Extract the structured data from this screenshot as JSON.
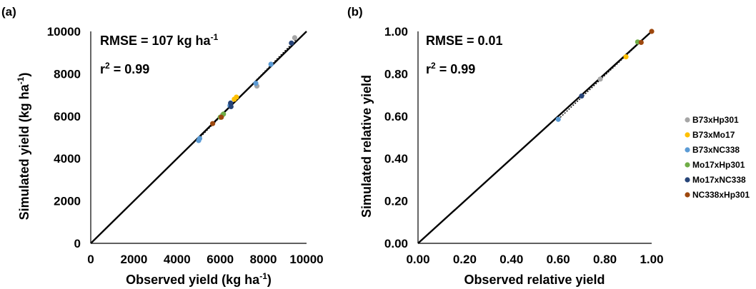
{
  "legend": {
    "placement": "right",
    "entries": [
      {
        "name": "B73xHp301",
        "color": "#a6a6a6"
      },
      {
        "name": "B73xMo17",
        "color": "#ffc000"
      },
      {
        "name": "B73xNC338",
        "color": "#5b9bd5"
      },
      {
        "name": "Mo17xHp301",
        "color": "#70ad47"
      },
      {
        "name": "Mo17xNC338",
        "color": "#264478"
      },
      {
        "name": "NC338xHp301",
        "color": "#9e480e"
      }
    ]
  },
  "chart_data": [
    {
      "type": "scatter",
      "panel_label": "(a)",
      "xlabel": "Observed yield  (kg ha",
      "xlabel_sup": "-1",
      "xlabel_tail": ")",
      "ylabel": "Simulated yield  (kg ha",
      "ylabel_sup": "-1",
      "ylabel_tail": ")",
      "xlim": [
        0,
        10000
      ],
      "ylim": [
        0,
        10000
      ],
      "xticks": [
        "0",
        "2000",
        "4000",
        "6000",
        "8000",
        "10000"
      ],
      "yticks": [
        "0",
        "2000",
        "4000",
        "6000",
        "8000",
        "10000"
      ],
      "grid": false,
      "annotations": {
        "rmse": "RMSE = 107 kg ha",
        "rmse_sup": "-1",
        "r2_prefix": "r",
        "r2_sup": "2",
        "r2_rest": " = 0.99"
      },
      "one_to_one_line": true,
      "trend_line": [
        [
          5000,
          4930
        ],
        [
          9500,
          9600
        ]
      ],
      "series": [
        {
          "name": "B73xHp301",
          "color": "#a6a6a6",
          "points": [
            [
              6100,
              6050
            ],
            [
              7700,
              7420
            ],
            [
              9450,
              9700
            ]
          ]
        },
        {
          "name": "B73xMo17",
          "color": "#ffc000",
          "points": [
            [
              6750,
              6900
            ],
            [
              6650,
              6800
            ]
          ]
        },
        {
          "name": "B73xNC338",
          "color": "#5b9bd5",
          "points": [
            [
              5000,
              4850
            ],
            [
              5050,
              4950
            ],
            [
              6450,
              6500
            ],
            [
              7650,
              7550
            ],
            [
              8350,
              8450
            ]
          ]
        },
        {
          "name": "Mo17xHp301",
          "color": "#70ad47",
          "points": [
            [
              6150,
              6100
            ],
            [
              6000,
              5950
            ]
          ]
        },
        {
          "name": "Mo17xNC338",
          "color": "#264478",
          "points": [
            [
              6500,
              6450
            ],
            [
              6480,
              6620
            ],
            [
              9300,
              9450
            ]
          ]
        },
        {
          "name": "NC338xHp301",
          "color": "#9e480e",
          "points": [
            [
              5650,
              5650
            ],
            [
              6050,
              5950
            ]
          ]
        }
      ]
    },
    {
      "type": "scatter",
      "panel_label": "(b)",
      "xlabel": "Observed relative yield",
      "ylabel": "Simulated relative yield",
      "xlim": [
        0,
        1
      ],
      "ylim": [
        0,
        1
      ],
      "xticks": [
        "0.00",
        "0.20",
        "0.40",
        "0.60",
        "0.80",
        "1.00"
      ],
      "yticks": [
        "0.00",
        "0.20",
        "0.40",
        "0.60",
        "0.80",
        "1.00"
      ],
      "grid": false,
      "annotations": {
        "rmse": "RMSE = 0.01",
        "r2_prefix": "r",
        "r2_sup": "2",
        "r2_rest": " = 0.99"
      },
      "one_to_one_line": true,
      "trend_line": [
        [
          0.6,
          0.585
        ],
        [
          1.0,
          1.0
        ]
      ],
      "series": [
        {
          "name": "B73xHp301",
          "color": "#a6a6a6",
          "points": [
            [
              0.78,
              0.775
            ]
          ]
        },
        {
          "name": "B73xMo17",
          "color": "#ffc000",
          "points": [
            [
              0.89,
              0.88
            ]
          ]
        },
        {
          "name": "B73xNC338",
          "color": "#5b9bd5",
          "points": [
            [
              0.6,
              0.585
            ]
          ]
        },
        {
          "name": "Mo17xHp301",
          "color": "#70ad47",
          "points": [
            [
              0.94,
              0.95
            ]
          ]
        },
        {
          "name": "Mo17xNC338",
          "color": "#264478",
          "points": [
            [
              0.7,
              0.695
            ]
          ]
        },
        {
          "name": "NC338xHp301",
          "color": "#9e480e",
          "points": [
            [
              1.0,
              1.0
            ],
            [
              0.955,
              0.948
            ]
          ]
        }
      ]
    }
  ]
}
